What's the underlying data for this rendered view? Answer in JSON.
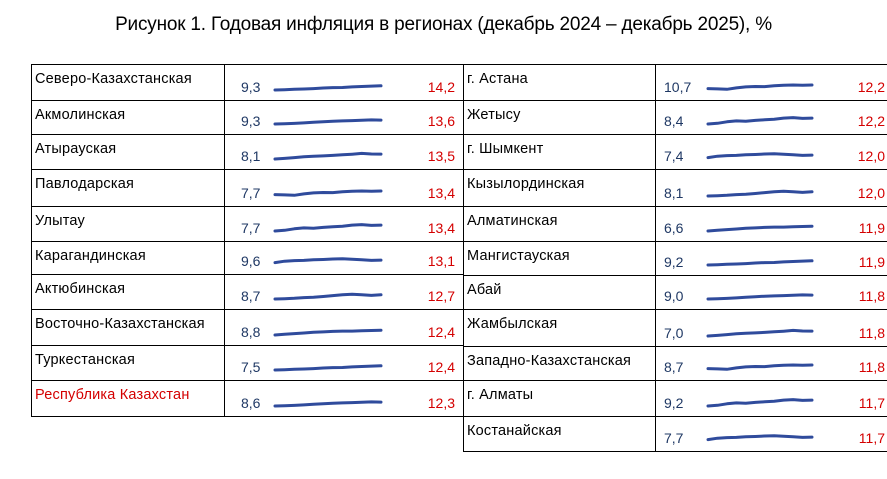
{
  "title": "Рисунок 1. Годовая инфляция в регионах (декабрь 2024 – декабрь 2025), %",
  "colors": {
    "start_value": "#1f3864",
    "end_value": "#d40000",
    "sparkline": "#2f4b9c",
    "highlight": "#d40000"
  },
  "chart_data": [
    {
      "type": "table",
      "columns": [
        "region",
        "dec_2024",
        "trend",
        "dec_2025"
      ],
      "rows": [
        {
          "region": "Северо-Казахстанская",
          "start": "9,3",
          "end": "14,2"
        },
        {
          "region": "Акмолинская",
          "start": "9,3",
          "end": "13,6"
        },
        {
          "region": "Атырауская",
          "start": "8,1",
          "end": "13,5"
        },
        {
          "region": "Павлодарская",
          "start": "7,7",
          "end": "13,4"
        },
        {
          "region": "Улытау",
          "start": "7,7",
          "end": "13,4"
        },
        {
          "region": "Карагандинская",
          "start": "9,6",
          "end": "13,1"
        },
        {
          "region": "Актюбинская",
          "start": "8,7",
          "end": "12,7"
        },
        {
          "region": "Восточно-Казахстанская",
          "start": "8,8",
          "end": "12,4"
        },
        {
          "region": "Туркестанская",
          "start": "7,5",
          "end": "12,4"
        },
        {
          "region": "Республика Казахстан",
          "start": "8,6",
          "end": "12,3",
          "highlight": true
        }
      ]
    },
    {
      "type": "table",
      "columns": [
        "region",
        "dec_2024",
        "trend",
        "dec_2025"
      ],
      "rows": [
        {
          "region": "г. Астана",
          "start": "10,7",
          "end": "12,2"
        },
        {
          "region": "Жетысу",
          "start": "8,4",
          "end": "12,2"
        },
        {
          "region": "г. Шымкент",
          "start": "7,4",
          "end": "12,0"
        },
        {
          "region": "Кызылординская",
          "start": "8,1",
          "end": "12,0"
        },
        {
          "region": "Алматинская",
          "start": "6,6",
          "end": "11,9"
        },
        {
          "region": "Мангистауская",
          "start": "9,2",
          "end": "11,9"
        },
        {
          "region": "Абай",
          "start": "9,0",
          "end": "11,8"
        },
        {
          "region": "Жамбылская",
          "start": "7,0",
          "end": "11,8"
        },
        {
          "region": "Западно-Казахстанская",
          "start": "8,7",
          "end": "11,8"
        },
        {
          "region": "г. Алматы",
          "start": "9,2",
          "end": "11,7"
        },
        {
          "region": "Костанайская",
          "start": "7,7",
          "end": "11,7"
        }
      ]
    }
  ]
}
